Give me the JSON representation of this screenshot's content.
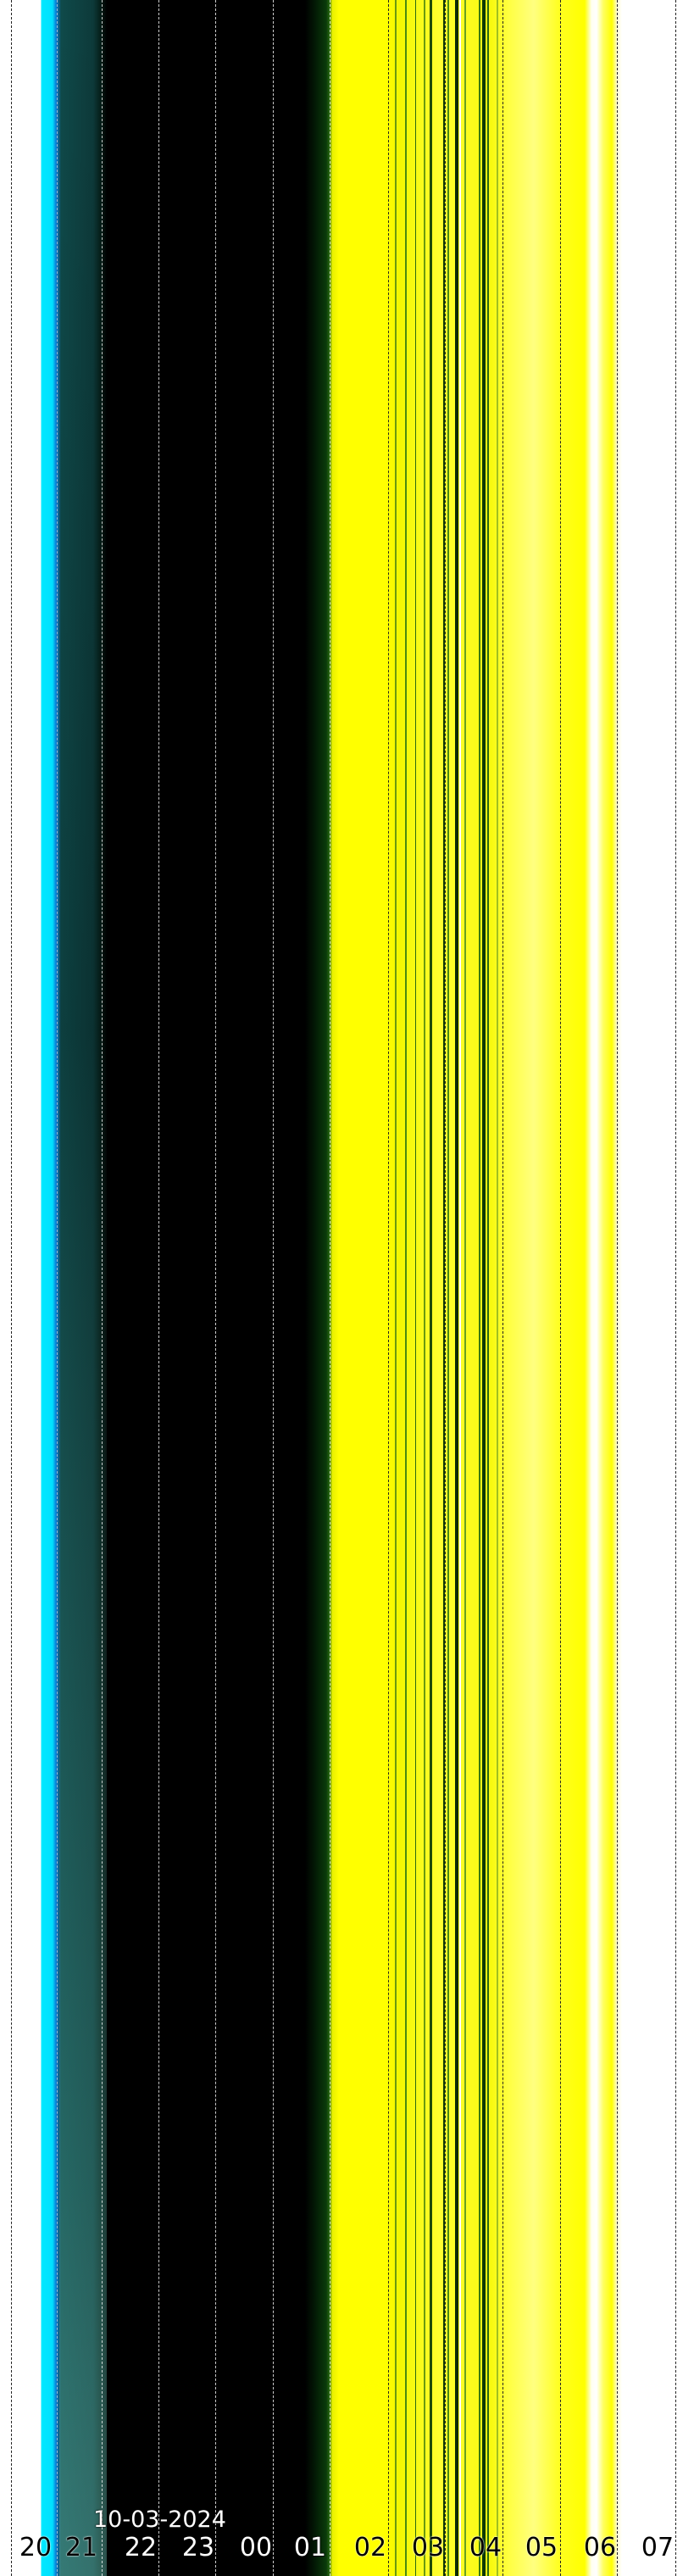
{
  "chart_data": {
    "type": "heatmap",
    "title": "",
    "date": "10-03-2024",
    "x_tick_labels": [
      "20",
      "21",
      "22",
      "23",
      "00",
      "01",
      "02",
      "03",
      "04",
      "05",
      "06",
      "07"
    ],
    "grid": true,
    "colors": {
      "twilight": "#00e8ff",
      "night": "#000000",
      "cloud_yellow": "#ffff00",
      "stripe_green": "#1f5a10",
      "day": "#ffffff"
    }
  }
}
